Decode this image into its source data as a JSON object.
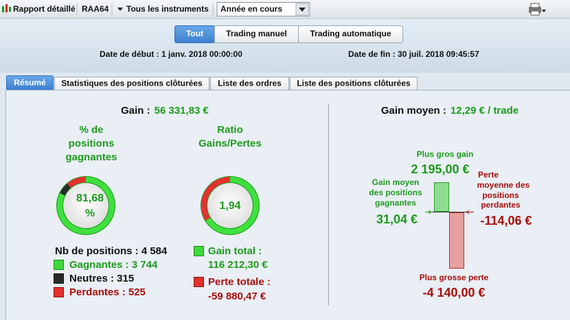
{
  "toolbar": {
    "report": "Rapport détaillé",
    "account": "RAA64",
    "instruments": "Tous les instruments",
    "period": "Année en cours"
  },
  "filters": [
    "Tout",
    "Trading manuel",
    "Trading automatique"
  ],
  "dates": {
    "start": "Date de début : 1 janv. 2018 00:00:00",
    "end": "Date de fin : 30 juil. 2018 09:45:57"
  },
  "tabs": [
    "Résumé",
    "Statistiques des positions clôturées",
    "Liste des ordres",
    "Liste des positions clôturées"
  ],
  "summary": {
    "gain_label": "Gain :",
    "gain_value": "56 331,83 €",
    "win_rate": {
      "title_lines": [
        "% de",
        "positions",
        "gagnantes"
      ],
      "value_lines": [
        "81,68",
        "%"
      ]
    },
    "ratio": {
      "title_lines": [
        "Ratio",
        "Gains/Pertes"
      ],
      "value": "1,94"
    },
    "positions": {
      "total": "Nb de positions : 4 584",
      "winning": "Gagnantes : 3 744",
      "neutral": "Neutres : 315",
      "losing": "Perdantes : 525"
    },
    "totals": {
      "gain_label": "Gain total :",
      "gain_value": "116 212,30 €",
      "loss_label": "Perte totale :",
      "loss_value": "-59 880,47 €"
    },
    "average": {
      "label": "Gain moyen :",
      "value": "12,29 € / trade"
    },
    "extremes": {
      "max_gain_label": "Plus gros gain",
      "max_gain": "2 195,00 €",
      "avg_gain_lines": [
        "Gain moyen",
        "des positions",
        "gagnantes"
      ],
      "avg_gain": "31,04 €",
      "avg_loss_lines": [
        "Perte",
        "moyenne des",
        "positions",
        "perdantes"
      ],
      "avg_loss": "-114,06 €",
      "max_loss_label": "Plus grosse perte",
      "max_loss": "-4 140,00 €"
    }
  }
}
